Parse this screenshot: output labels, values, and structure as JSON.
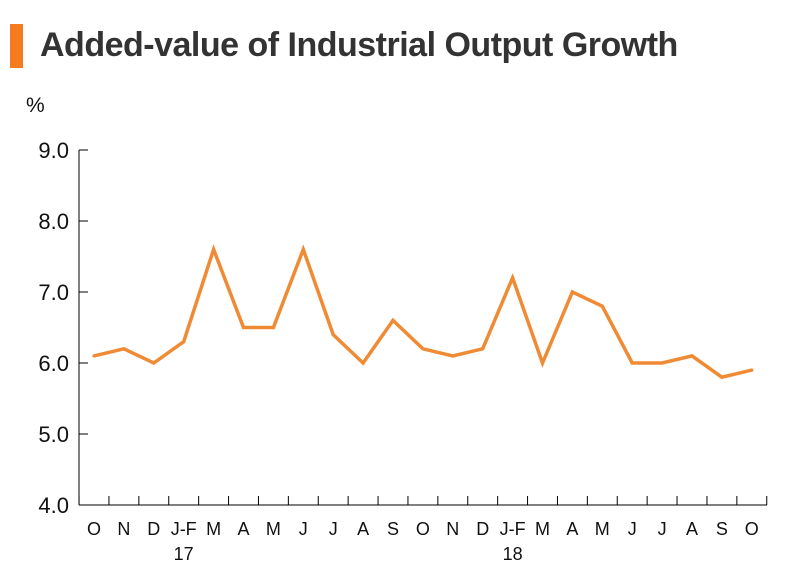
{
  "colors": {
    "accent": "#F47B20",
    "line": "#F08B35",
    "axis": "#000000"
  },
  "chart_data": {
    "type": "line",
    "title": "Added-value of Industrial Output Growth",
    "ylabel": "%",
    "xlabel": "",
    "ylim": [
      4.0,
      9.0
    ],
    "yticks": [
      "4.0",
      "5.0",
      "6.0",
      "7.0",
      "8.0",
      "9.0"
    ],
    "grid": false,
    "categories": [
      "O",
      "N",
      "D",
      "J-F",
      "M",
      "A",
      "M",
      "J",
      "J",
      "A",
      "S",
      "O",
      "N",
      "D",
      "J-F",
      "M",
      "A",
      "M",
      "J",
      "J",
      "A",
      "S",
      "O"
    ],
    "year_labels": [
      {
        "index": 3,
        "label": "17"
      },
      {
        "index": 14,
        "label": "18"
      }
    ],
    "series": [
      {
        "values": [
          6.1,
          6.2,
          6.0,
          6.3,
          7.6,
          6.5,
          6.5,
          7.6,
          6.4,
          6.0,
          6.6,
          6.2,
          6.1,
          6.2,
          7.2,
          6.0,
          7.0,
          6.8,
          6.0,
          6.0,
          6.1,
          5.8,
          5.9
        ]
      }
    ]
  }
}
